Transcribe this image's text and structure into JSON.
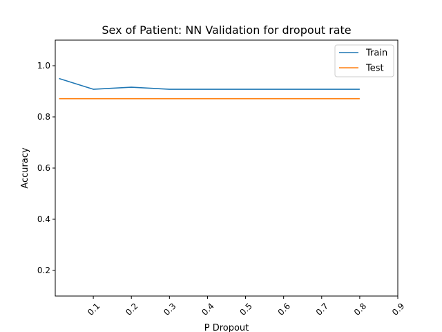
{
  "chart_data": {
    "type": "line",
    "title": "Sex of Patient: NN Validation for dropout rate",
    "xlabel": "P Dropout",
    "ylabel": "Accuracy",
    "xlim": [
      0.0,
      0.9
    ],
    "ylim": [
      0.1,
      1.1
    ],
    "x": [
      0.01,
      0.1,
      0.2,
      0.3,
      0.4,
      0.5,
      0.6,
      0.7,
      0.8
    ],
    "xticks": [
      0.1,
      0.2,
      0.3,
      0.4,
      0.5,
      0.6,
      0.7,
      0.8,
      0.9
    ],
    "xtick_labels": [
      "0.1",
      "0.2",
      "0.3",
      "0.4",
      "0.5",
      "0.6",
      "0.7",
      "0.8",
      "0.9"
    ],
    "yticks": [
      0.2,
      0.4,
      0.6,
      0.8,
      1.0
    ],
    "ytick_labels": [
      "0.2",
      "0.4",
      "0.6",
      "0.8",
      "1.0"
    ],
    "series": [
      {
        "name": "Train",
        "color": "#1f77b4",
        "values": [
          0.95,
          0.908,
          0.916,
          0.908,
          0.908,
          0.908,
          0.908,
          0.908,
          0.908
        ]
      },
      {
        "name": "Test",
        "color": "#ff7f0e",
        "values": [
          0.871,
          0.871,
          0.871,
          0.871,
          0.871,
          0.871,
          0.871,
          0.871,
          0.871
        ]
      }
    ],
    "legend_position": "top-right",
    "grid": false
  }
}
